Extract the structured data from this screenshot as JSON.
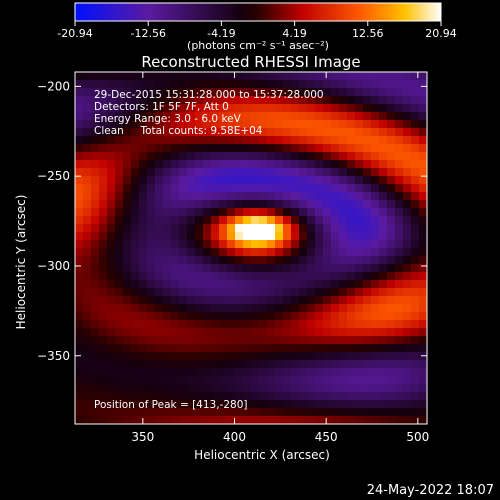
{
  "colorbar": {
    "ticks": [
      "-20.94",
      "-12.56",
      "-4.19",
      "4.19",
      "12.56",
      "20.94"
    ],
    "tick_values": [
      -20.94,
      -12.56,
      -4.19,
      4.19,
      12.56,
      20.94
    ],
    "unit_label": "(photons cm⁻² s⁻¹ asec⁻²)"
  },
  "chart_data": {
    "type": "heatmap",
    "title": "Reconstructed RHESSI Image",
    "xlabel": "Heliocentric X (arcsec)",
    "ylabel": "Heliocentric Y (arcsec)",
    "xlim": [
      313,
      505
    ],
    "ylim": [
      -388,
      -192
    ],
    "xticks": [
      350,
      400,
      450,
      500
    ],
    "xtick_labels": [
      "350",
      "400",
      "450",
      "500"
    ],
    "yticks": [
      -200,
      -250,
      -300,
      -350
    ],
    "ytick_labels": [
      "−200",
      "−250",
      "−300",
      "−350"
    ],
    "value_range": [
      -20.94,
      20.94
    ],
    "colormap": [
      "#0000ff",
      "#6a0dad",
      "#000000",
      "#b30000",
      "#ff5500",
      "#ffd000",
      "#ffffff"
    ],
    "peak": [
      413,
      -280
    ],
    "annotations": {
      "line1": "29-Dec-2015 15:31:28.000 to 15:37:28.000",
      "line2": "Detectors: 1F 5F 7F, Att 0",
      "line3": "Energy Range: 3.0 - 6.0 keV",
      "line4": "Clean     Total counts: 9.58E+04",
      "peak_label": "Position of Peak = [413,-280]"
    }
  },
  "footer": {
    "date": "24-May-2022 18:07"
  }
}
